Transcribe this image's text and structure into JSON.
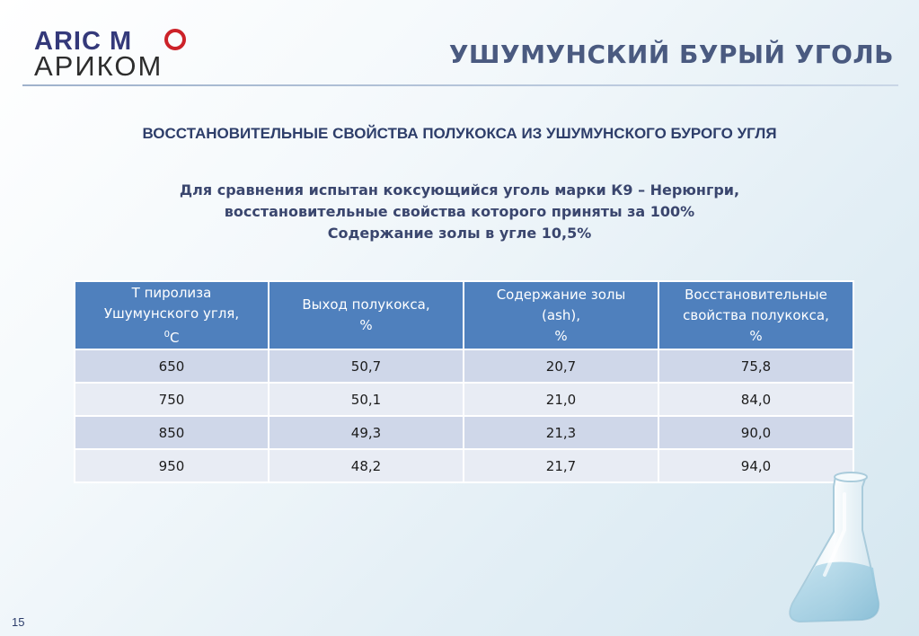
{
  "logo": {
    "line1": "ARIC M",
    "line2": "АРИКОМ"
  },
  "header": {
    "title": "УШУМУНСКИЙ БУРЫЙ УГОЛЬ"
  },
  "subtitle": "ВОССТАНОВИТЕЛЬНЫЕ СВОЙСТВА ПОЛУКОКСА ИЗ УШУМУНСКОГО БУРОГО УГЛЯ",
  "note": {
    "line1": "Для сравнения  испытан коксующийся уголь марки К9 – Нерюнгри,",
    "line2": "восстановительные свойства которого приняты за 100%",
    "line3": "Содержание золы в угле 10,5%"
  },
  "table": {
    "headers": [
      {
        "line1": "Т пиролиза",
        "line2": "Ушумунского угля,",
        "line3_sup": "0",
        "line3": "С"
      },
      {
        "line1": "Выход полукокса,",
        "line2": "%"
      },
      {
        "line1": "Содержание золы",
        "line2": "(ash),",
        "line3": "%"
      },
      {
        "line1": "Восстановительные",
        "line2": "свойства полукокса,",
        "line3": "%"
      }
    ],
    "rows": [
      [
        "650",
        "50,7",
        "20,7",
        "75,8"
      ],
      [
        "750",
        "50,1",
        "21,0",
        "84,0"
      ],
      [
        "850",
        "49,3",
        "21,3",
        "90,0"
      ],
      [
        "950",
        "48,2",
        "21,7",
        "94,0"
      ]
    ]
  },
  "footer": {
    "page_number": "15"
  },
  "colors": {
    "header_fill": "#4f80bd",
    "row_odd": "#cfd7e9",
    "row_even": "#e8ecf4",
    "title": "#4a5a80"
  }
}
